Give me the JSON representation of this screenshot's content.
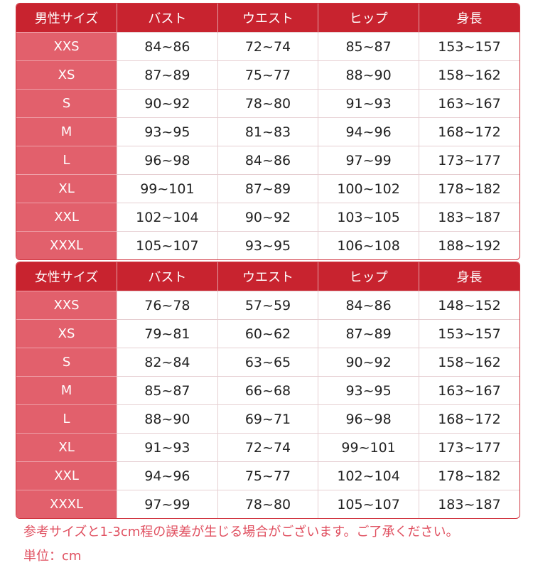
{
  "colors": {
    "header": "#c8232f",
    "size_column": "#e2606c",
    "note": "#e05060"
  },
  "tables": [
    {
      "headers": [
        "男性サイズ",
        "バスト",
        "ウエスト",
        "ヒップ",
        "身長"
      ],
      "rows": [
        [
          "XXS",
          "84~86",
          "72~74",
          "85~87",
          "153~157"
        ],
        [
          "XS",
          "87~89",
          "75~77",
          "88~90",
          "158~162"
        ],
        [
          "S",
          "90~92",
          "78~80",
          "91~93",
          "163~167"
        ],
        [
          "M",
          "93~95",
          "81~83",
          "94~96",
          "168~172"
        ],
        [
          "L",
          "96~98",
          "84~86",
          "97~99",
          "173~177"
        ],
        [
          "XL",
          "99~101",
          "87~89",
          "100~102",
          "178~182"
        ],
        [
          "XXL",
          "102~104",
          "90~92",
          "103~105",
          "183~187"
        ],
        [
          "XXXL",
          "105~107",
          "93~95",
          "106~108",
          "188~192"
        ]
      ]
    },
    {
      "headers": [
        "女性サイズ",
        "バスト",
        "ウエスト",
        "ヒップ",
        "身長"
      ],
      "rows": [
        [
          "XXS",
          "76~78",
          "57~59",
          "84~86",
          "148~152"
        ],
        [
          "XS",
          "79~81",
          "60~62",
          "87~89",
          "153~157"
        ],
        [
          "S",
          "82~84",
          "63~65",
          "90~92",
          "158~162"
        ],
        [
          "M",
          "85~87",
          "66~68",
          "93~95",
          "163~167"
        ],
        [
          "L",
          "88~90",
          "69~71",
          "96~98",
          "168~172"
        ],
        [
          "XL",
          "91~93",
          "72~74",
          "99~101",
          "173~177"
        ],
        [
          "XXL",
          "94~96",
          "75~77",
          "102~104",
          "178~182"
        ],
        [
          "XXXL",
          "97~99",
          "78~80",
          "105~107",
          "183~187"
        ]
      ]
    }
  ],
  "notes": {
    "disclaimer": "参考サイズと1-3cm程の誤差が生じる場合がございます。ご了承ください。",
    "unit": "単位：cm"
  }
}
